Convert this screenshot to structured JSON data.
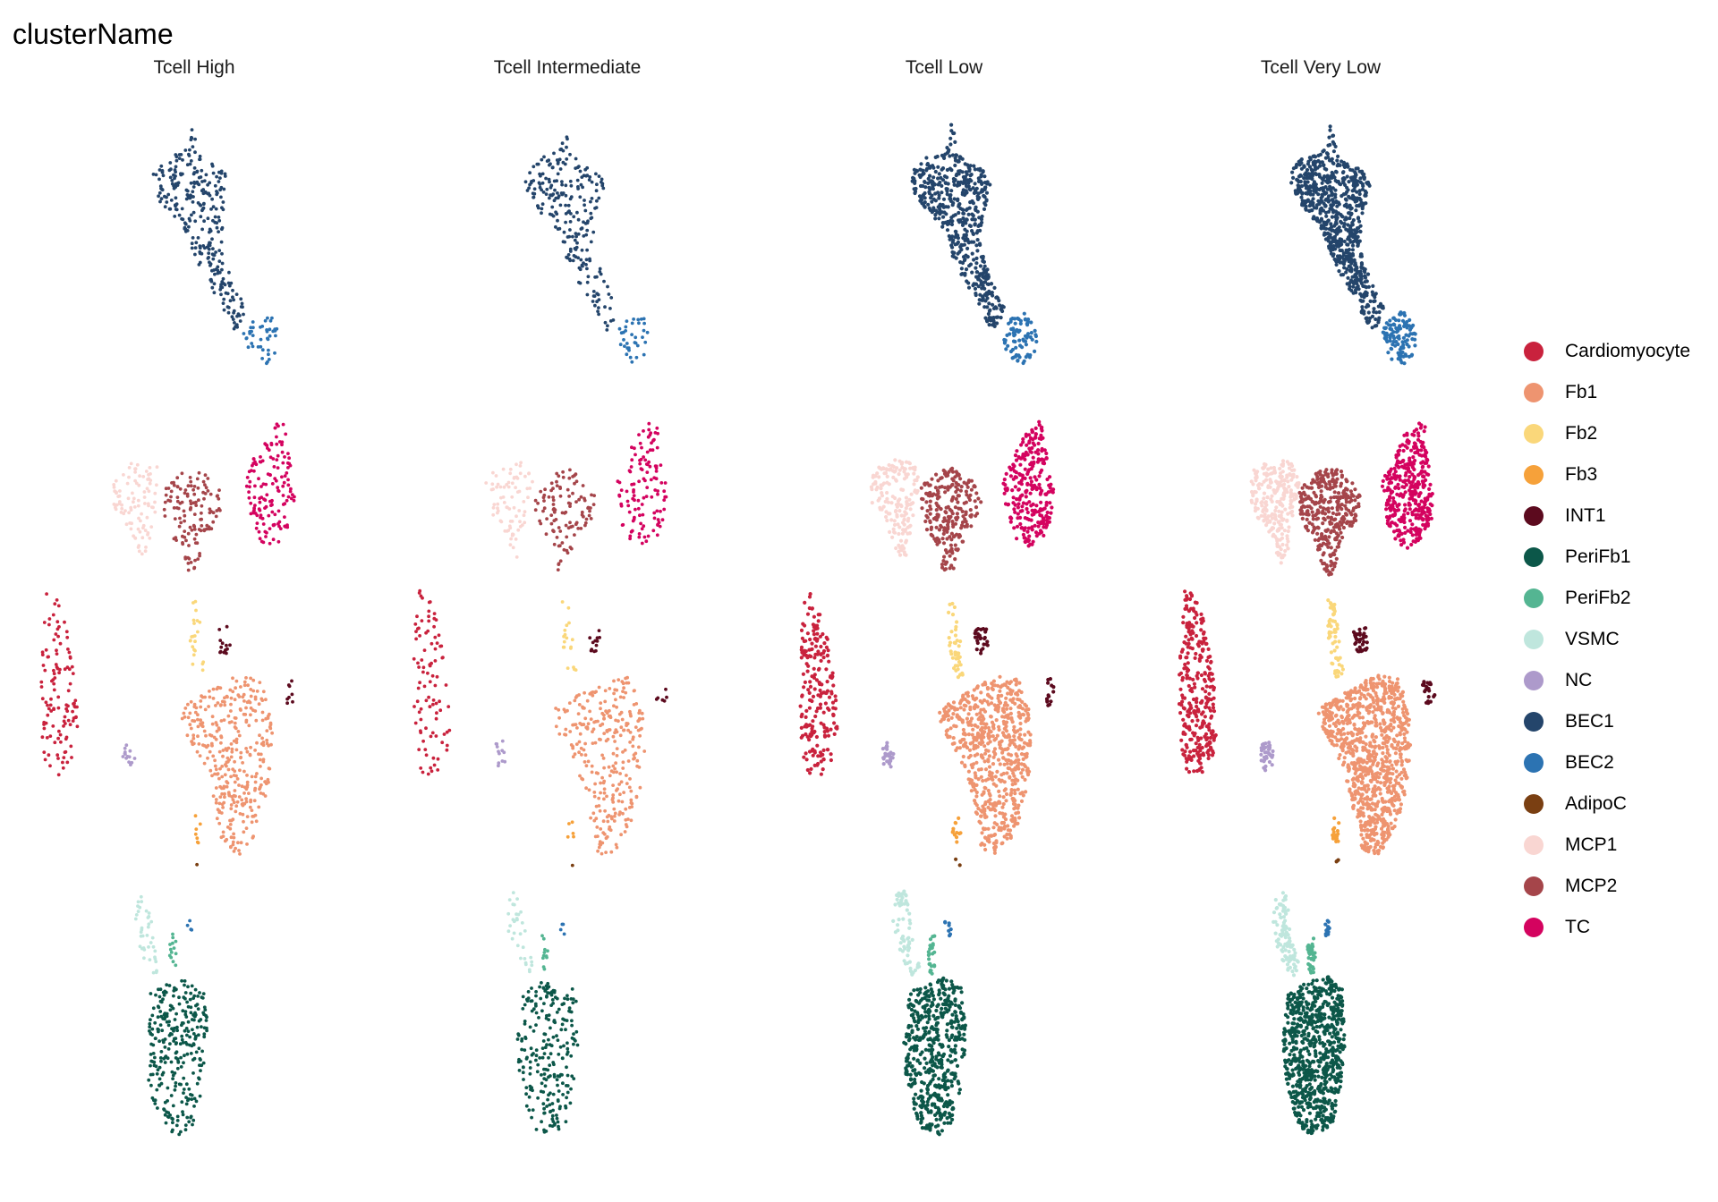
{
  "chart_data": {
    "type": "scatter",
    "title": "clusterName",
    "facets": [
      "Tcell High",
      "Tcell Intermediate",
      "Tcell Low",
      "Tcell Very Low"
    ],
    "density": [
      0.55,
      0.45,
      1.0,
      1.45
    ],
    "axes": "none",
    "grid": false,
    "legend_placement": "right",
    "clusters": [
      {
        "name": "Cardiomyocyte",
        "color": "#C9223D"
      },
      {
        "name": "Fb1",
        "color": "#EE9470"
      },
      {
        "name": "Fb2",
        "color": "#FAD77A"
      },
      {
        "name": "Fb3",
        "color": "#F6A13A"
      },
      {
        "name": "INT1",
        "color": "#5C0A1E"
      },
      {
        "name": "PeriFb1",
        "color": "#0C5749"
      },
      {
        "name": "PeriFb2",
        "color": "#54B592"
      },
      {
        "name": "VSMC",
        "color": "#BFE6DD"
      },
      {
        "name": "NC",
        "color": "#AD9ACB"
      },
      {
        "name": "BEC1",
        "color": "#24456B"
      },
      {
        "name": "BEC2",
        "color": "#2C73B2"
      },
      {
        "name": "AdipoC",
        "color": "#7A3F12"
      },
      {
        "name": "MCP1",
        "color": "#F9D6D2"
      },
      {
        "name": "MCP2",
        "color": "#A5454A"
      },
      {
        "name": "TC",
        "color": "#D4035F"
      }
    ]
  }
}
